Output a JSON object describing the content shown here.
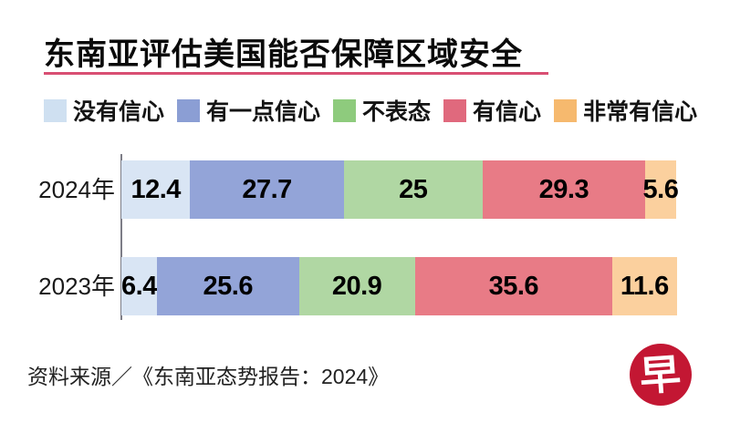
{
  "title": "东南亚评估美国能否保障区域安全",
  "accent_line_color": "#d94f73",
  "source": "资料来源／《东南亚态势报告：2024》",
  "logo": {
    "char": "早",
    "bg_color": "#c31733"
  },
  "chart_data": {
    "type": "bar",
    "orientation": "horizontal",
    "stacked": true,
    "unit": "%",
    "xlim": [
      0,
      100
    ],
    "grid": false,
    "legend_position": "top",
    "categories": [
      "2024年",
      "2023年"
    ],
    "series": [
      {
        "name": "没有信心",
        "legend_color": "#cfe0f1",
        "bar_color": "#d9e5f4",
        "values": [
          12.4,
          6.4
        ]
      },
      {
        "name": "有一点信心",
        "legend_color": "#8b9ed4",
        "bar_color": "#93a4d8",
        "values": [
          27.7,
          25.6
        ]
      },
      {
        "name": "不表态",
        "legend_color": "#8ecb7d",
        "bar_color": "#b0d7a3",
        "values": [
          25,
          20.9
        ]
      },
      {
        "name": "有信心",
        "legend_color": "#e0697d",
        "bar_color": "#e87b86",
        "values": [
          29.3,
          35.6
        ]
      },
      {
        "name": "非常有信心",
        "legend_color": "#f6b96e",
        "bar_color": "#fbd09e",
        "values": [
          5.6,
          11.6
        ]
      }
    ]
  }
}
